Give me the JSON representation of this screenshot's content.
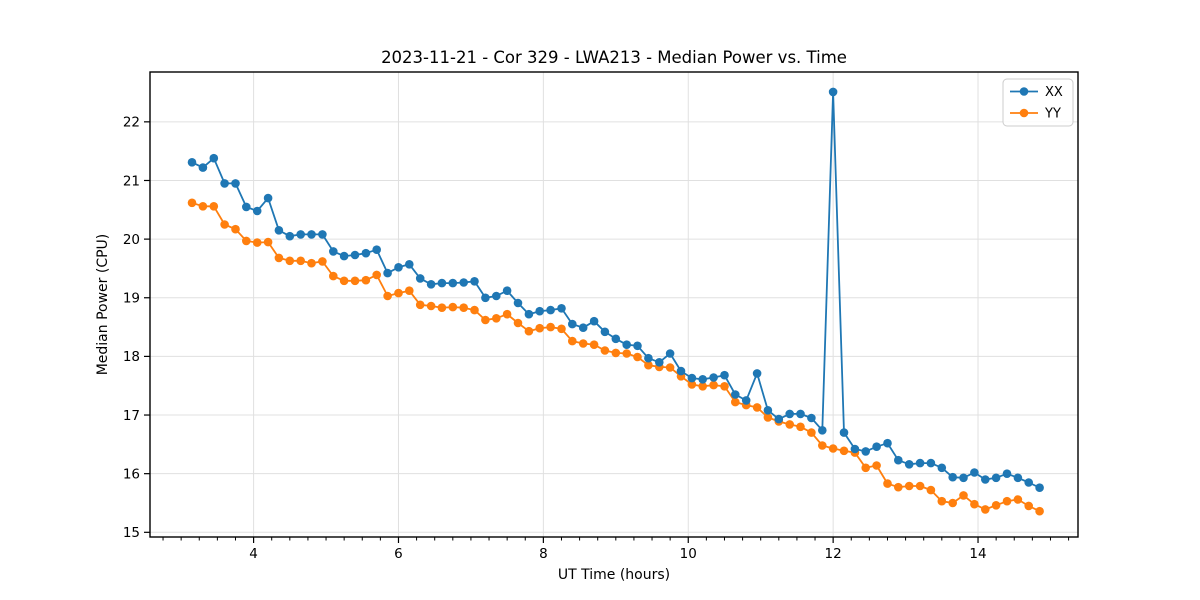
{
  "chart_data": {
    "type": "line",
    "title": "2023-11-21 - Cor 329 - LWA213 - Median Power vs. Time",
    "xlabel": "UT Time (hours)",
    "ylabel": "Median Power (CPU)",
    "xlim": [
      2.57,
      15.38
    ],
    "ylim": [
      14.92,
      22.85
    ],
    "x_major_ticks": [
      4,
      6,
      8,
      10,
      12,
      14
    ],
    "x_minor_tick_step": 0.25,
    "y_major_ticks": [
      15,
      16,
      17,
      18,
      19,
      20,
      21,
      22
    ],
    "grid": true,
    "grid_color": "#e0e0e0",
    "background_color": "#ffffff",
    "spine_color": "#000000",
    "legend": {
      "position": "upper right",
      "labels": [
        "XX",
        "YY"
      ]
    },
    "x": [
      3.15,
      3.3,
      3.45,
      3.6,
      3.75,
      3.9,
      4.05,
      4.2,
      4.35,
      4.5,
      4.65,
      4.8,
      4.95,
      5.1,
      5.25,
      5.4,
      5.55,
      5.7,
      5.85,
      6.0,
      6.15,
      6.3,
      6.45,
      6.6,
      6.75,
      6.9,
      7.05,
      7.2,
      7.35,
      7.5,
      7.65,
      7.8,
      7.95,
      8.1,
      8.25,
      8.4,
      8.55,
      8.7,
      8.85,
      9.0,
      9.15,
      9.3,
      9.45,
      9.6,
      9.75,
      9.9,
      10.05,
      10.2,
      10.35,
      10.5,
      10.65,
      10.8,
      10.95,
      11.1,
      11.25,
      11.4,
      11.55,
      11.7,
      11.85,
      12.0,
      12.15,
      12.3,
      12.45,
      12.6,
      12.75,
      12.9,
      13.05,
      13.2,
      13.35,
      13.5,
      13.65,
      13.8,
      13.95,
      14.1,
      14.25,
      14.4,
      14.55,
      14.7,
      14.85
    ],
    "series": [
      {
        "name": "XX",
        "color": "#1f77b4",
        "values": [
          21.31,
          21.22,
          21.38,
          20.95,
          20.95,
          20.55,
          20.48,
          20.7,
          20.15,
          20.05,
          20.08,
          20.08,
          20.08,
          19.79,
          19.71,
          19.73,
          19.76,
          19.82,
          19.42,
          19.52,
          19.57,
          19.33,
          19.23,
          19.25,
          19.25,
          19.26,
          19.28,
          19.0,
          19.03,
          19.12,
          18.91,
          18.72,
          18.77,
          18.79,
          18.82,
          18.55,
          18.49,
          18.6,
          18.42,
          18.3,
          18.2,
          18.18,
          17.97,
          17.9,
          18.05,
          17.75,
          17.63,
          17.61,
          17.64,
          17.68,
          17.35,
          17.25,
          17.71,
          17.08,
          16.93,
          17.02,
          17.02,
          16.95,
          16.74,
          22.51,
          16.7,
          16.42,
          16.38,
          16.46,
          16.52,
          16.23,
          16.16,
          16.18,
          16.18,
          16.1,
          15.94,
          15.93,
          16.02,
          15.9,
          15.93,
          16.0,
          15.93,
          15.85,
          15.76
        ]
      },
      {
        "name": "YY",
        "color": "#ff7f0e",
        "values": [
          20.62,
          20.56,
          20.56,
          20.25,
          20.17,
          19.97,
          19.94,
          19.95,
          19.68,
          19.63,
          19.63,
          19.59,
          19.62,
          19.37,
          19.29,
          19.29,
          19.3,
          19.39,
          19.03,
          19.08,
          19.12,
          18.88,
          18.86,
          18.83,
          18.84,
          18.83,
          18.79,
          18.62,
          18.65,
          18.72,
          18.57,
          18.43,
          18.48,
          18.5,
          18.47,
          18.26,
          18.22,
          18.2,
          18.1,
          18.06,
          18.05,
          17.99,
          17.85,
          17.82,
          17.81,
          17.66,
          17.52,
          17.49,
          17.51,
          17.49,
          17.22,
          17.17,
          17.13,
          16.96,
          16.89,
          16.84,
          16.8,
          16.7,
          16.48,
          16.43,
          16.39,
          16.36,
          16.1,
          16.14,
          15.83,
          15.77,
          15.79,
          15.79,
          15.72,
          15.53,
          15.5,
          15.63,
          15.48,
          15.39,
          15.46,
          15.53,
          15.56,
          15.45,
          15.36
        ]
      }
    ]
  }
}
